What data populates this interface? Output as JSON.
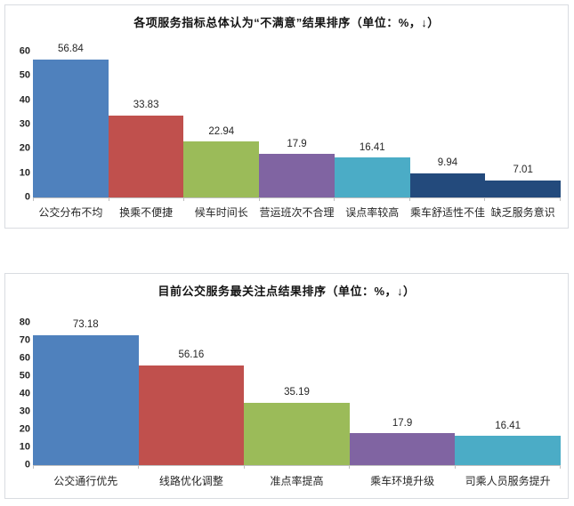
{
  "page": {
    "background_color": "#ffffff",
    "frame_border_color": "#d9dce1",
    "axis_line_color": "#bfbfbf"
  },
  "chart_data": [
    {
      "type": "bar",
      "title": "各项服务指标总体认为“不满意”结果排序（单位：%，↓）",
      "categories": [
        "公交分布不均",
        "换乘不便捷",
        "候车时间长",
        "营运班次不合理",
        "误点率较高",
        "乘车舒适性不佳",
        "缺乏服务意识"
      ],
      "values": [
        56.84,
        33.83,
        22.94,
        17.9,
        16.41,
        9.94,
        7.01
      ],
      "value_labels": [
        "56.84",
        "33.83",
        "22.94",
        "17.9",
        "16.41",
        "9.94",
        "7.01"
      ],
      "bar_colors": [
        "#4F81BD",
        "#C0504D",
        "#9BBB59",
        "#8064A2",
        "#4BACC6",
        "#234A7C",
        "#234A7C"
      ],
      "xlabel": "",
      "ylabel": "",
      "ylim": [
        0,
        60
      ],
      "yticks": [
        0,
        10,
        20,
        30,
        40,
        50,
        60
      ],
      "grid": false,
      "legend": "none",
      "bar_gap": 0
    },
    {
      "type": "bar",
      "title": "目前公交服务最关注点结果排序（单位：%，↓）",
      "categories": [
        "公交通行优先",
        "线路优化调整",
        "准点率提高",
        "乘车环境升级",
        "司乘人员服务提升"
      ],
      "values": [
        73.18,
        56.16,
        35.19,
        17.9,
        16.41
      ],
      "value_labels": [
        "73.18",
        "56.16",
        "35.19",
        "17.9",
        "16.41"
      ],
      "bar_colors": [
        "#4F81BD",
        "#C0504D",
        "#9BBB59",
        "#8064A2",
        "#4BACC6"
      ],
      "xlabel": "",
      "ylabel": "",
      "ylim": [
        0,
        80
      ],
      "yticks": [
        0,
        10,
        20,
        30,
        40,
        50,
        60,
        70,
        80
      ],
      "grid": false,
      "legend": "none",
      "bar_gap": 0
    }
  ]
}
